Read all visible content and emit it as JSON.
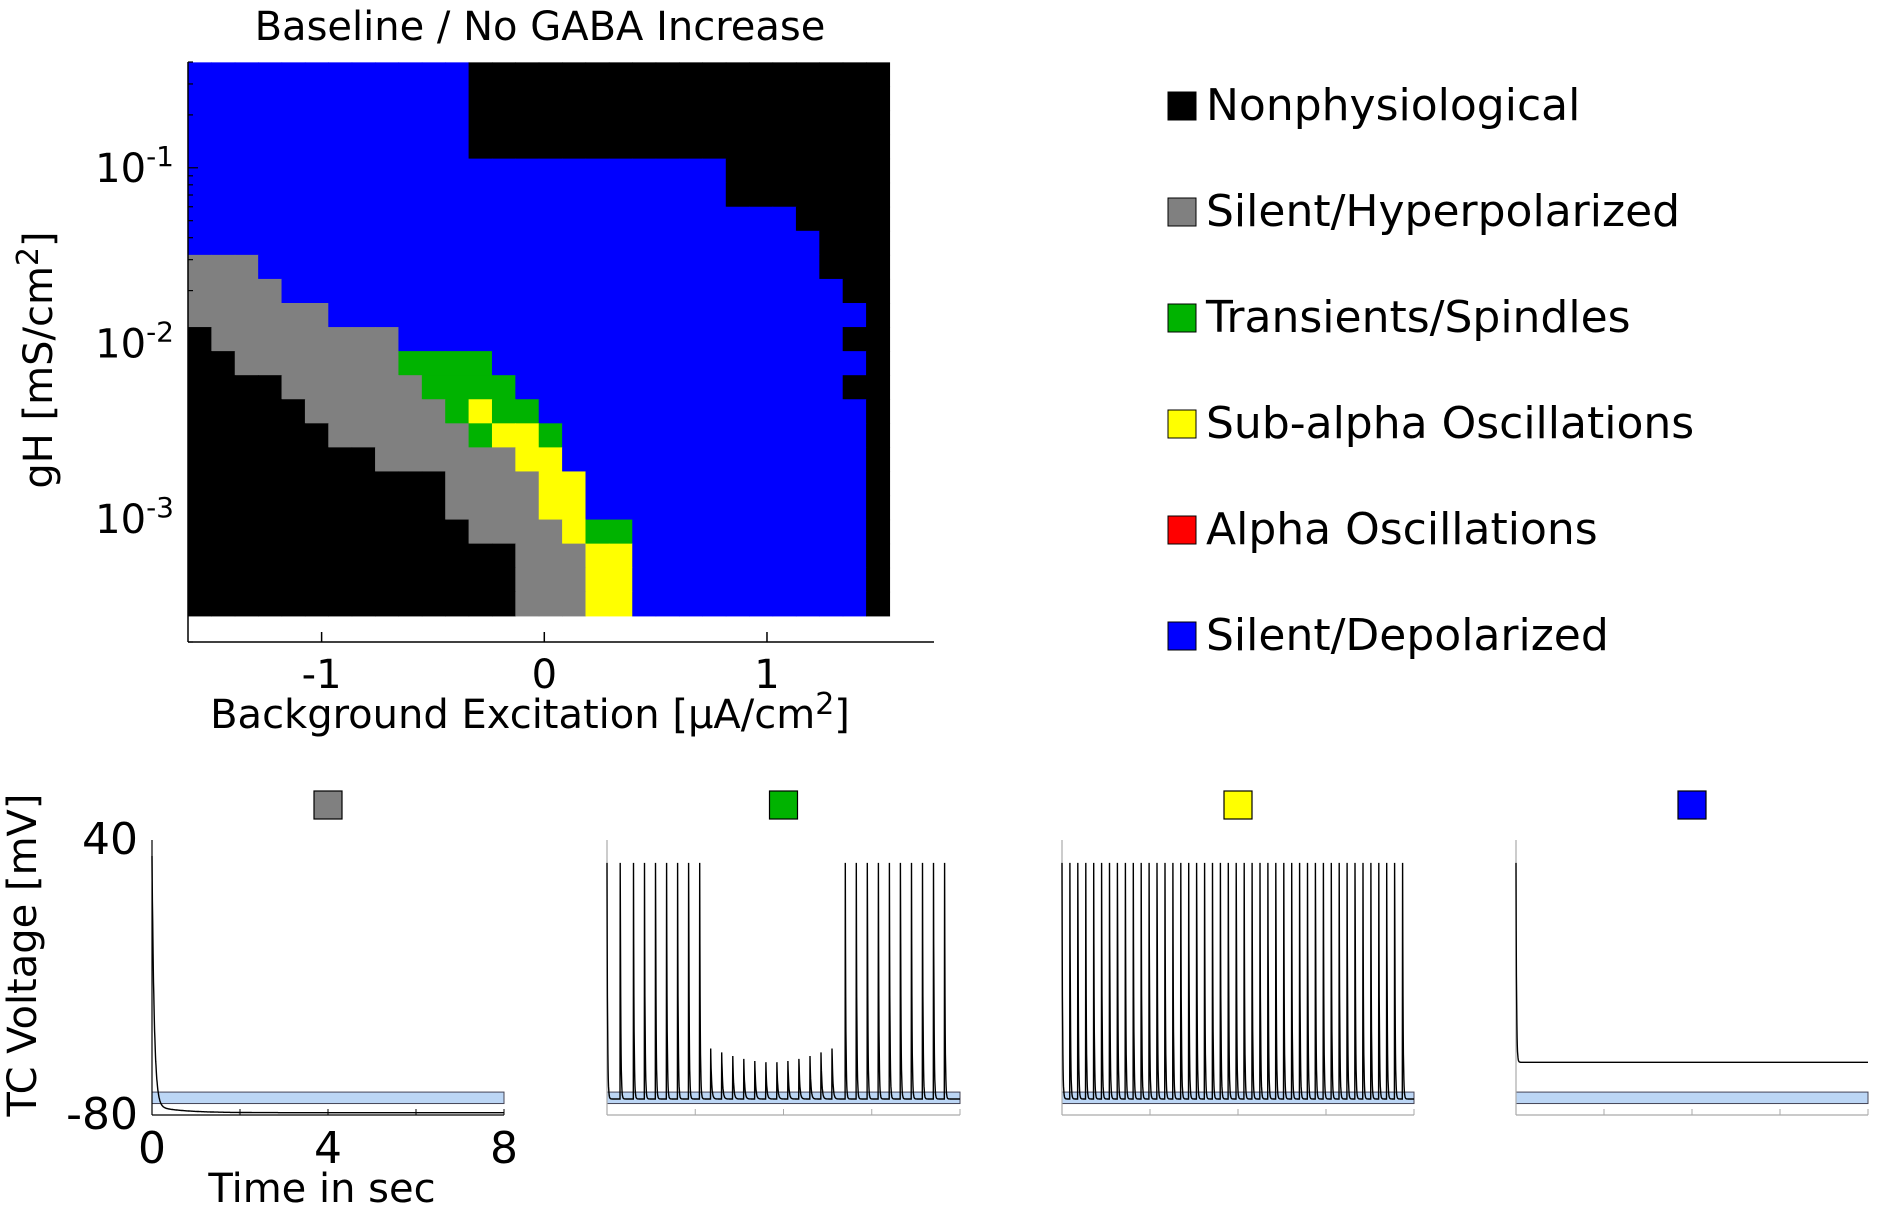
{
  "chart_data": [
    {
      "type": "heatmap",
      "title": "Baseline / No GABA Increase",
      "xlabel": "Background Excitation [μA/cm",
      "xlabel_sup": "2",
      "xlabel_end": "]",
      "ylabel": "gH [mS/cm",
      "ylabel_sup": "2",
      "ylabel_end": "]",
      "xlim": [
        -1.6,
        1.75
      ],
      "y_scale": "log",
      "ylim": [
        0.0002,
        0.4
      ],
      "xticks": [
        {
          "value": -1,
          "label": "-1"
        },
        {
          "value": 0,
          "label": "0"
        },
        {
          "value": 1,
          "label": "1"
        }
      ],
      "yticks": [
        {
          "value": 0.1,
          "base": "10",
          "exp": "-1"
        },
        {
          "value": 0.01,
          "base": "10",
          "exp": "-2"
        },
        {
          "value": 0.001,
          "base": "10",
          "exp": "-3"
        }
      ],
      "grid": false,
      "legend_position": "right",
      "categories": [
        {
          "code": "N",
          "name": "Nonphysiological",
          "color": "#000000"
        },
        {
          "code": "G",
          "name": "Silent/Hyperpolarized",
          "color": "#808080"
        },
        {
          "code": "T",
          "name": "Transients/Spindles",
          "color": "#00b300"
        },
        {
          "code": "Y",
          "name": "Sub-alpha Oscillations",
          "color": "#ffff00"
        },
        {
          "code": "R",
          "name": "Alpha Oscillations",
          "color": "#ff0000"
        },
        {
          "code": "B",
          "name": "Silent/Depolarized",
          "color": "#0000ff"
        }
      ],
      "grid_x_range": [
        -1.6,
        1.55
      ],
      "grid_log10_y_range": [
        -3.55,
        -0.4
      ],
      "grid_rows_top_to_bottom": [
        "BBBBBBBBBBBBNNNNNNNNNNNNNNNNNN",
        "BBBBBBBBBBBBNNNNNNNNNNNNNNNNNN",
        "BBBBBBBBBBBBNNNNNNNNNNNNNNNNNN",
        "BBBBBBBBBBBBNNNNNNNNNNNNNNNNNN",
        "BBBBBBBBBBBBBBBBBBBBBBBNNNNNNN",
        "BBBBBBBBBBBBBBBBBBBBBBBNNNNNNN",
        "BBBBBBBBBBBBBBBBBBBBBBBBBBNNNN",
        "BBBBBBBBBBBBBBBBBBBBBBBBBBBNNN",
        "GGGBBBBBBBBBBBBBBBBBBBBBBBBNNN",
        "GGGGBBBBBBBBBBBBBBBBBBBBBBBBNN",
        "GGGGGGBBBBBBBBBBBBBBBBBBBBBBBN",
        "NGGGGGGGGBBBBBBBBBBBBBBBBBBBNN",
        "NNGGGGGGGTTTTBBBBBBBBBBBBBBBBN",
        "NNNNGGGGGGTTTTBBBBBBBBBBBBBBNN",
        "NNNNNGGGGGGTYTTBBBBBBBBBBBBBBN",
        "NNNNNNGGGGGGTYYTBBBBBBBBBBBBBN",
        "NNNNNNNNGGGGGGYYBBBBBBBBBBBBBN",
        "NNNNNNNNNNNGGGGYYBBBBBBBBBBBBN",
        "NNNNNNNNNNNGGGGYYBBBBBBBBBBBBN",
        "NNNNNNNNNNNNGGGGYTTBBBBBBBBBBN",
        "NNNNNNNNNNNNNNGGGYYBBBBBBBBBBN",
        "NNNNNNNNNNNNNNGGGYYBBBBBBBBBBN",
        "NNNNNNNNNNNNNNGGGYYBBBBBBBBBBN"
      ]
    },
    {
      "type": "line",
      "marker_color": "#808080",
      "ylabel": "TC Voltage [mV]",
      "xlabel": "Time in sec",
      "xlim": [
        0,
        8
      ],
      "ylim": [
        -80,
        40
      ],
      "xticks": [
        "0",
        "4",
        "8"
      ],
      "yticks": [
        "40",
        "-80"
      ],
      "band": [
        -75,
        -70
      ],
      "trace": "single spike to ~30 mV at t=0, then decays and stays near -79 mV",
      "spike_times": [
        0.02
      ],
      "baseline_mV": -79
    },
    {
      "type": "line",
      "marker_color": "#00b300",
      "xlim": [
        0,
        8
      ],
      "ylim": [
        -80,
        40
      ],
      "band": [
        -75,
        -70
      ],
      "spike_times": [
        0.0,
        0.3,
        0.6,
        0.85,
        1.1,
        1.35,
        1.6,
        1.85,
        2.1,
        5.4,
        5.65,
        5.9,
        6.15,
        6.4,
        6.65,
        6.9,
        7.15,
        7.4,
        7.65
      ],
      "subthreshold_times": [
        2.35,
        2.6,
        2.85,
        3.1,
        3.35,
        3.6,
        3.85,
        4.1,
        4.35,
        4.6,
        4.85,
        5.1
      ],
      "spike_peak_mV": 30,
      "baseline_mV": -73
    },
    {
      "type": "line",
      "marker_color": "#ffff00",
      "xlim": [
        0,
        8
      ],
      "ylim": [
        -80,
        40
      ],
      "band": [
        -75,
        -70
      ],
      "spike_times": [
        0.0,
        0.18,
        0.36,
        0.54,
        0.72,
        0.9,
        1.08,
        1.26,
        1.44,
        1.62,
        1.8,
        1.98,
        2.16,
        2.34,
        2.52,
        2.7,
        2.88,
        3.06,
        3.24,
        3.42,
        3.6,
        3.78,
        3.96,
        4.14,
        4.32,
        4.5,
        4.68,
        4.86,
        5.04,
        5.22,
        5.4,
        5.58,
        5.76,
        5.94,
        6.12,
        6.3,
        6.48,
        6.66,
        6.84,
        7.02,
        7.2,
        7.38,
        7.56,
        7.74
      ],
      "spike_peak_mV": 30,
      "baseline_mV": -73
    },
    {
      "type": "line",
      "marker_color": "#0000ff",
      "xlim": [
        0,
        8
      ],
      "ylim": [
        -80,
        40
      ],
      "band": [
        -75,
        -70
      ],
      "spike_times": [
        0.0
      ],
      "spike_peak_mV": 30,
      "baseline_mV": -57,
      "oscillation_amplitude_mV": 2
    }
  ]
}
